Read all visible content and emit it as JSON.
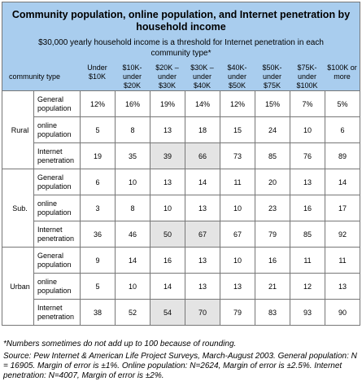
{
  "table": {
    "title": "Community population, online population, and Internet penetration by household income",
    "subtitle": "$30,000 yearly household income is a threshold for Internet penetration in each community type*",
    "community_type_label": "community type",
    "income_columns": [
      [
        "Under",
        "$10K"
      ],
      [
        "$10K-",
        "under",
        "$20K"
      ],
      [
        "$20K –",
        "under",
        "$30K"
      ],
      [
        "$30K –",
        "under",
        "$40K"
      ],
      [
        "$40K-",
        "under",
        "$50K"
      ],
      [
        "$50K-",
        "under",
        "$75K"
      ],
      [
        "$75K-",
        "under",
        "$100K"
      ],
      [
        "$100K or",
        "more"
      ]
    ],
    "groups": [
      {
        "name": "Rural",
        "rows": [
          {
            "label": "General population",
            "values": [
              "12%",
              "16%",
              "19%",
              "14%",
              "12%",
              "15%",
              "7%",
              "5%"
            ]
          },
          {
            "label": "online population",
            "values": [
              "5",
              "8",
              "13",
              "18",
              "15",
              "24",
              "10",
              "6"
            ]
          },
          {
            "label": "Internet penetration",
            "values": [
              "19",
              "35",
              "39",
              "66",
              "73",
              "85",
              "76",
              "89"
            ]
          }
        ]
      },
      {
        "name": "Sub.",
        "rows": [
          {
            "label": "General population",
            "values": [
              "6",
              "10",
              "13",
              "14",
              "11",
              "20",
              "13",
              "14"
            ]
          },
          {
            "label": "online population",
            "values": [
              "3",
              "8",
              "10",
              "13",
              "10",
              "23",
              "16",
              "17"
            ]
          },
          {
            "label": "Internet penetration",
            "values": [
              "36",
              "46",
              "50",
              "67",
              "67",
              "79",
              "85",
              "92"
            ]
          }
        ]
      },
      {
        "name": "Urban",
        "rows": [
          {
            "label": "General population",
            "values": [
              "9",
              "14",
              "16",
              "13",
              "10",
              "16",
              "11",
              "11"
            ]
          },
          {
            "label": "online population",
            "values": [
              "5",
              "10",
              "14",
              "13",
              "13",
              "21",
              "12",
              "13"
            ]
          },
          {
            "label": "Internet penetration",
            "values": [
              "38",
              "52",
              "54",
              "70",
              "79",
              "83",
              "93",
              "90"
            ]
          }
        ]
      }
    ],
    "highlight_color": "#e4e4e4",
    "header_color": "#a9cdee"
  },
  "footnotes": {
    "note": "*Numbers sometimes do not add up to 100 because of rounding.",
    "source": "Source: Pew Internet & American Life Project Surveys, March-August 2003. General population: N = 16905. Margin of error is ±1%. Online population: N=2624, Margin of error is ±2.5%. Internet penetration: N=4007, Margin of error is ±2%."
  }
}
